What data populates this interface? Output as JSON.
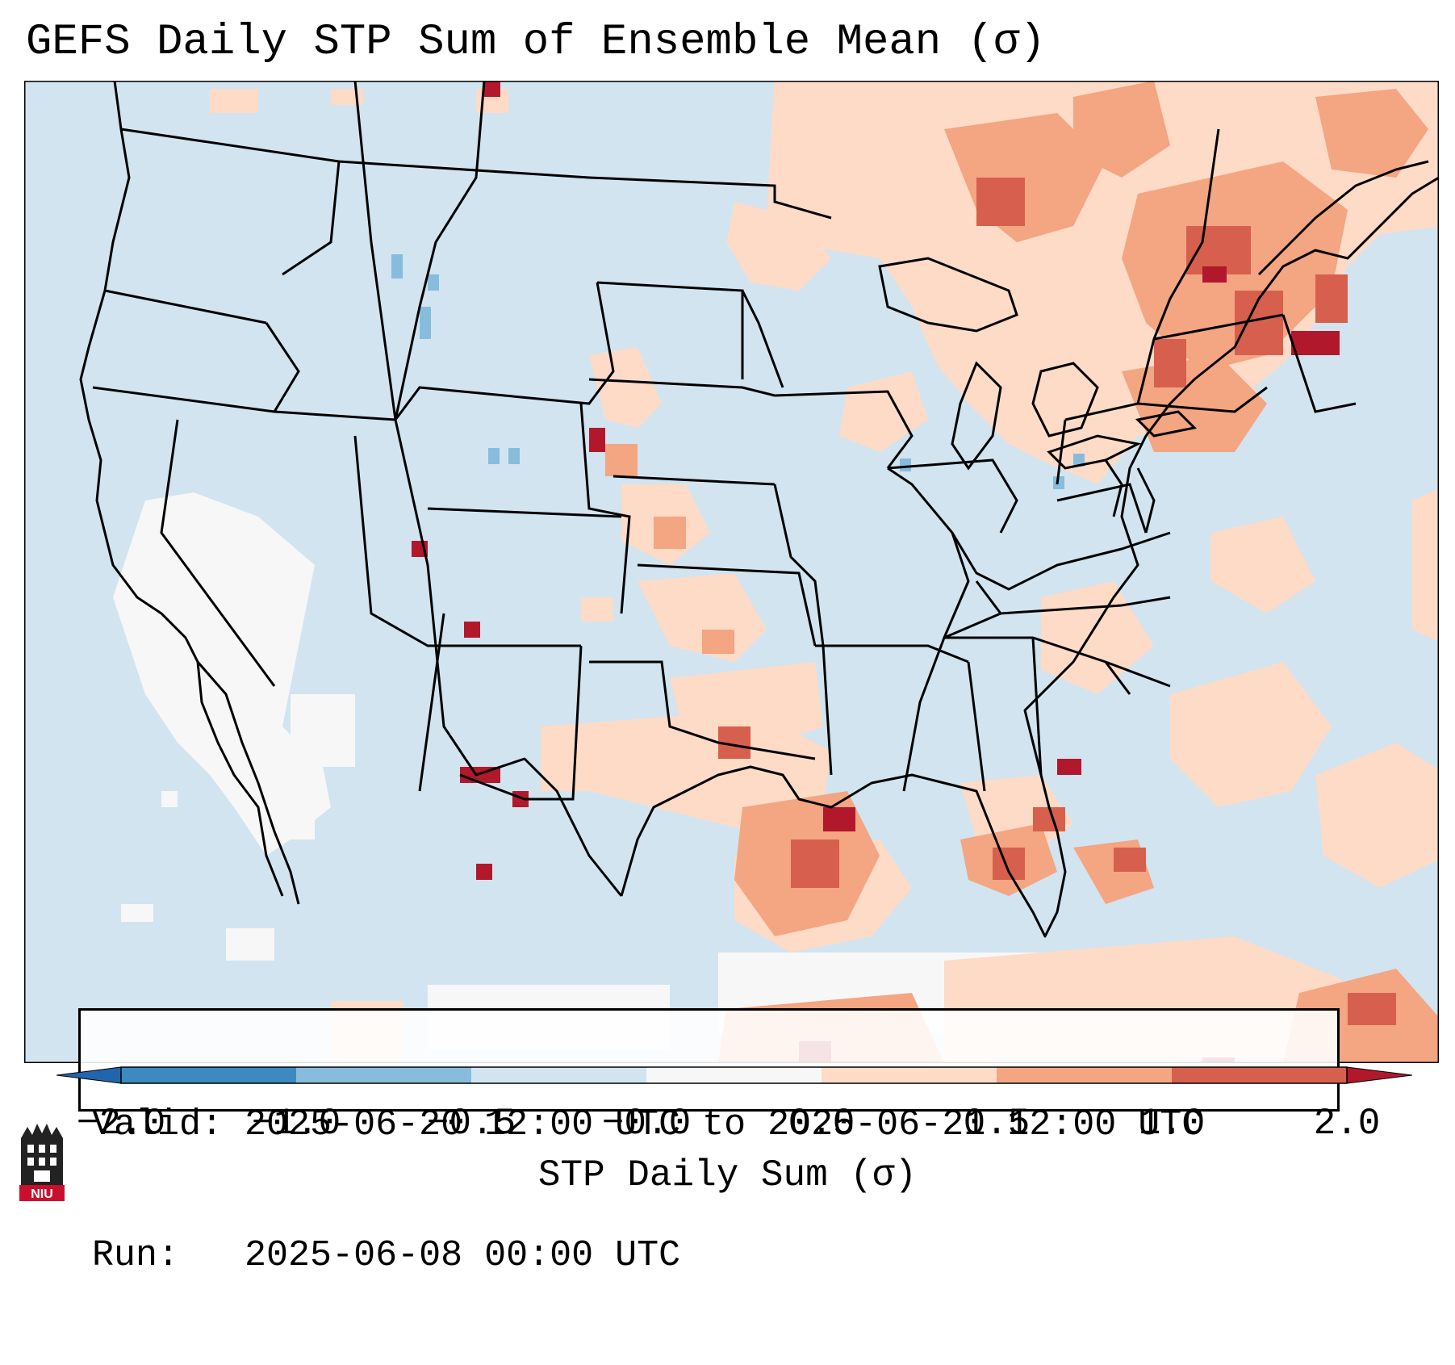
{
  "title": "GEFS Daily STP Sum of Ensemble Mean (σ)",
  "info": {
    "valid_label": "Valid:",
    "valid_value": "2025-06-20 12:00 UTC to 2025-06-21 12:00 UTC",
    "run_label": "Run:",
    "run_value": "2025-06-08 00:00 UTC"
  },
  "colorbar": {
    "label": "STP Daily Sum (σ)",
    "ticks": [
      "−2.0",
      "−1.0",
      "−0.5",
      "−0.0",
      "0.0",
      "0.5",
      "1.0",
      "2.0"
    ],
    "colors": [
      "#3c8ac1",
      "#88bcdd",
      "#d1e4f0",
      "#f7f7f7",
      "#fddbc7",
      "#f4a582",
      "#d6604d",
      "#b2182b"
    ]
  },
  "logo": {
    "text": "NIU"
  }
}
